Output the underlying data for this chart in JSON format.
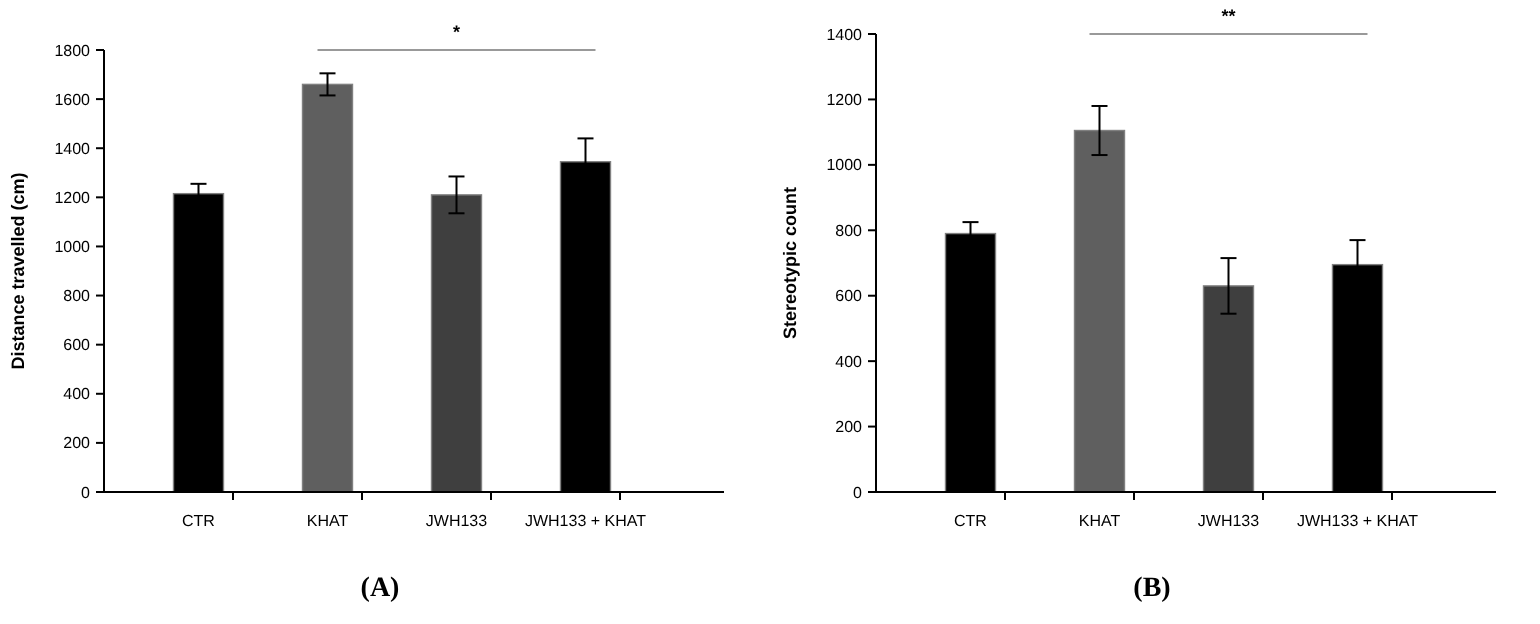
{
  "chart_data": [
    {
      "type": "bar",
      "title": "(A)",
      "ylabel": "Distance travelled (cm)",
      "categories": [
        "CTR",
        "KHAT",
        "JWH133",
        "JWH133 + KHAT"
      ],
      "colors": [
        "#000000",
        "#5f5f5f",
        "#3f3f3f",
        "#000000"
      ],
      "values": [
        1215,
        1660,
        1210,
        1345
      ],
      "errors": [
        40,
        45,
        75,
        95
      ],
      "ylim": [
        0,
        1800
      ],
      "yticks": [
        0,
        200,
        400,
        600,
        800,
        1000,
        1200,
        1400,
        1600,
        1800
      ],
      "annotations": [
        "*"
      ]
    },
    {
      "type": "bar",
      "title": "(B)",
      "ylabel": "Stereotypic count",
      "categories": [
        "CTR",
        "KHAT",
        "JWH133",
        "JWH133 + KHAT"
      ],
      "colors": [
        "#000000",
        "#5f5f5f",
        "#3f3f3f",
        "#000000"
      ],
      "values": [
        790,
        1105,
        630,
        695
      ],
      "errors": [
        35,
        75,
        85,
        75
      ],
      "ylim": [
        0,
        1400
      ],
      "yticks": [
        0,
        200,
        400,
        600,
        800,
        1000,
        1200,
        1400
      ],
      "annotations": [
        "**"
      ]
    }
  ]
}
